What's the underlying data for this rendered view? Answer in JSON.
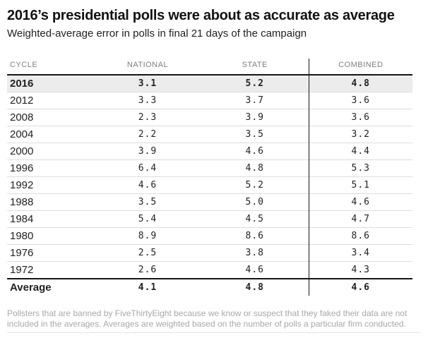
{
  "header": {
    "title": "2016’s presidential polls were about as accurate as average",
    "subtitle": "Weighted-average error in polls in final 21 days of the campaign"
  },
  "table": {
    "columns": [
      "CYCLE",
      "NATIONAL",
      "STATE",
      "COMBINED"
    ],
    "rows": [
      {
        "cycle": "2016",
        "national": "3.1",
        "state": "5.2",
        "combined": "4.8",
        "highlight": true,
        "bold": true
      },
      {
        "cycle": "2012",
        "national": "3.3",
        "state": "3.7",
        "combined": "3.6"
      },
      {
        "cycle": "2008",
        "national": "2.3",
        "state": "3.9",
        "combined": "3.6"
      },
      {
        "cycle": "2004",
        "national": "2.2",
        "state": "3.5",
        "combined": "3.2"
      },
      {
        "cycle": "2000",
        "national": "3.9",
        "state": "4.6",
        "combined": "4.4"
      },
      {
        "cycle": "1996",
        "national": "6.4",
        "state": "4.8",
        "combined": "5.3"
      },
      {
        "cycle": "1992",
        "national": "4.6",
        "state": "5.2",
        "combined": "5.1"
      },
      {
        "cycle": "1988",
        "national": "3.5",
        "state": "5.0",
        "combined": "4.6"
      },
      {
        "cycle": "1984",
        "national": "5.4",
        "state": "4.5",
        "combined": "4.7"
      },
      {
        "cycle": "1980",
        "national": "8.9",
        "state": "8.6",
        "combined": "8.6"
      },
      {
        "cycle": "1976",
        "national": "2.5",
        "state": "3.8",
        "combined": "3.4"
      },
      {
        "cycle": "1972",
        "national": "2.6",
        "state": "4.6",
        "combined": "4.3"
      },
      {
        "cycle": "Average",
        "national": "4.1",
        "state": "4.8",
        "combined": "4.6",
        "bold": true,
        "summary": true
      }
    ]
  },
  "footnote": "Pollsters that are banned by FiveThirtyEight because we know or suspect that they faked their data are not included in the averages. Averages are weighted based on the number of polls a particular firm conducted.",
  "colors": {
    "rule_dark": "#141414",
    "row_border": "#dcdcdc",
    "highlight_row_bg": "#ececec",
    "header_text": "#7e7e7e",
    "footnote_text": "#a8a8a8"
  },
  "chart_data": {
    "type": "table",
    "title": "2016’s presidential polls were about as accurate as average",
    "subtitle": "Weighted-average error in polls in final 21 days of the campaign",
    "columns": [
      "CYCLE",
      "NATIONAL",
      "STATE",
      "COMBINED"
    ],
    "rows": [
      [
        "2016",
        3.1,
        5.2,
        4.8
      ],
      [
        "2012",
        3.3,
        3.7,
        3.6
      ],
      [
        "2008",
        2.3,
        3.9,
        3.6
      ],
      [
        "2004",
        2.2,
        3.5,
        3.2
      ],
      [
        "2000",
        3.9,
        4.6,
        4.4
      ],
      [
        "1996",
        6.4,
        4.8,
        5.3
      ],
      [
        "1992",
        4.6,
        5.2,
        5.1
      ],
      [
        "1988",
        3.5,
        5.0,
        4.6
      ],
      [
        "1984",
        5.4,
        4.5,
        4.7
      ],
      [
        "1980",
        8.9,
        8.6,
        8.6
      ],
      [
        "1976",
        2.5,
        3.8,
        3.4
      ],
      [
        "1972",
        2.6,
        4.6,
        4.3
      ],
      [
        "Average",
        4.1,
        4.8,
        4.6
      ]
    ],
    "highlighted_row": "2016",
    "summary_row": "Average",
    "note": "Pollsters that are banned by FiveThirtyEight because we know or suspect that they faked their data are not included in the averages. Averages are weighted based on the number of polls a particular firm conducted."
  }
}
